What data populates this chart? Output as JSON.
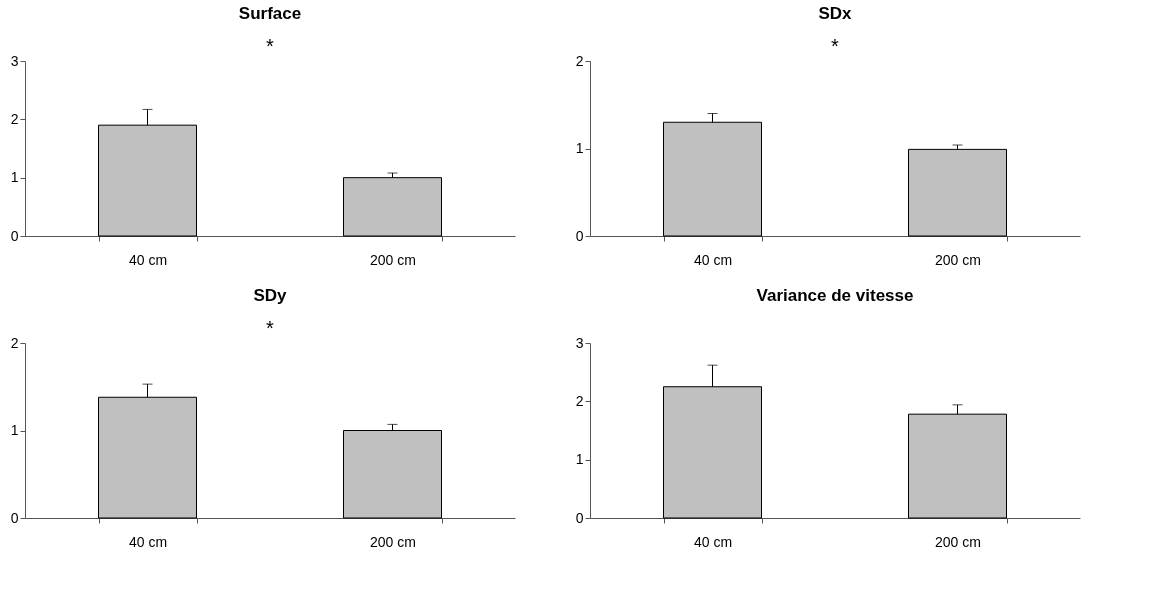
{
  "chart_data": [
    {
      "type": "bar",
      "title": "Surface",
      "categories": [
        "40 cm",
        "200 cm"
      ],
      "values": [
        1.9,
        1.0
      ],
      "errors": [
        [
          1.9,
          2.17
        ],
        [
          1.0,
          1.08
        ]
      ],
      "color": "#c0c0c0",
      "ylim": [
        0,
        3
      ],
      "yticks": [
        0,
        1,
        2,
        3
      ],
      "grid": false,
      "annotations": [
        "*"
      ]
    },
    {
      "type": "bar",
      "title": "SDx",
      "categories": [
        "40 cm",
        "200 cm"
      ],
      "values": [
        1.3,
        0.99
      ],
      "errors": [
        [
          1.3,
          1.4
        ],
        [
          0.99,
          1.04
        ]
      ],
      "color": "#c0c0c0",
      "ylim": [
        0,
        2
      ],
      "yticks": [
        0,
        1,
        2
      ],
      "grid": false,
      "annotations": [
        "*"
      ]
    },
    {
      "type": "bar",
      "title": "SDy",
      "categories": [
        "40 cm",
        "200 cm"
      ],
      "values": [
        1.38,
        1.0
      ],
      "errors": [
        [
          1.38,
          1.53
        ],
        [
          1.0,
          1.07
        ]
      ],
      "color": "#c0c0c0",
      "ylim": [
        0,
        2
      ],
      "yticks": [
        0,
        1,
        2
      ],
      "grid": false,
      "annotations": [
        "*"
      ]
    },
    {
      "type": "bar",
      "title": "Variance de vitesse",
      "categories": [
        "40 cm",
        "200 cm"
      ],
      "values": [
        2.25,
        1.78
      ],
      "errors": [
        [
          2.25,
          2.62
        ],
        [
          1.78,
          1.94
        ]
      ],
      "color": "#c0c0c0",
      "ylim": [
        0,
        3
      ],
      "yticks": [
        0,
        1,
        2,
        3
      ],
      "grid": false
    }
  ]
}
